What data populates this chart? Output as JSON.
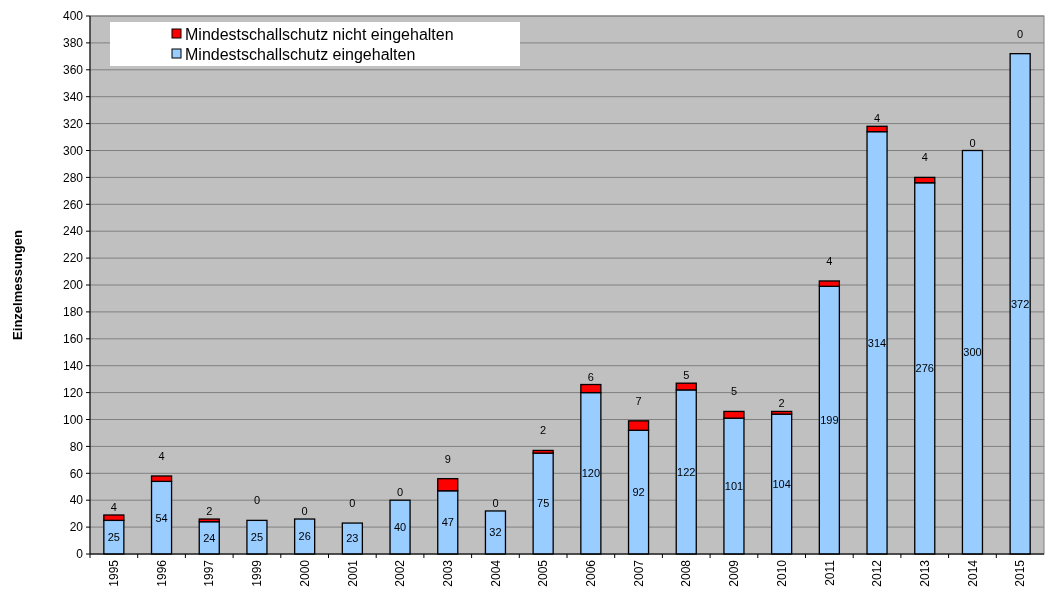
{
  "chart_data": {
    "type": "bar",
    "stacked": true,
    "ylabel": "Einzelmessungen",
    "categories": [
      "1995",
      "1996",
      "1997",
      "1999",
      "2000",
      "2001",
      "2002",
      "2003",
      "2004",
      "2005",
      "2006",
      "2007",
      "2008",
      "2009",
      "2010",
      "2011",
      "2012",
      "2013",
      "2014",
      "2015"
    ],
    "series": [
      {
        "name": "Mindestschallschutz eingehalten",
        "color": "#99ccff",
        "values": [
          25,
          54,
          24,
          25,
          26,
          23,
          40,
          47,
          32,
          75,
          120,
          92,
          122,
          101,
          104,
          199,
          314,
          276,
          300,
          372
        ]
      },
      {
        "name": "Mindestschallschutz nicht eingehalten",
        "color": "#ff0000",
        "values": [
          4,
          4,
          2,
          0,
          0,
          0,
          0,
          9,
          0,
          2,
          6,
          7,
          5,
          5,
          2,
          4,
          4,
          4,
          0,
          0
        ]
      }
    ],
    "ylim": [
      0,
      400
    ],
    "yticks": [
      0,
      20,
      40,
      60,
      80,
      100,
      120,
      140,
      160,
      180,
      200,
      220,
      240,
      260,
      280,
      300,
      320,
      340,
      360,
      380,
      400
    ],
    "grid": "y",
    "legend": "top left",
    "data_labels": true
  }
}
